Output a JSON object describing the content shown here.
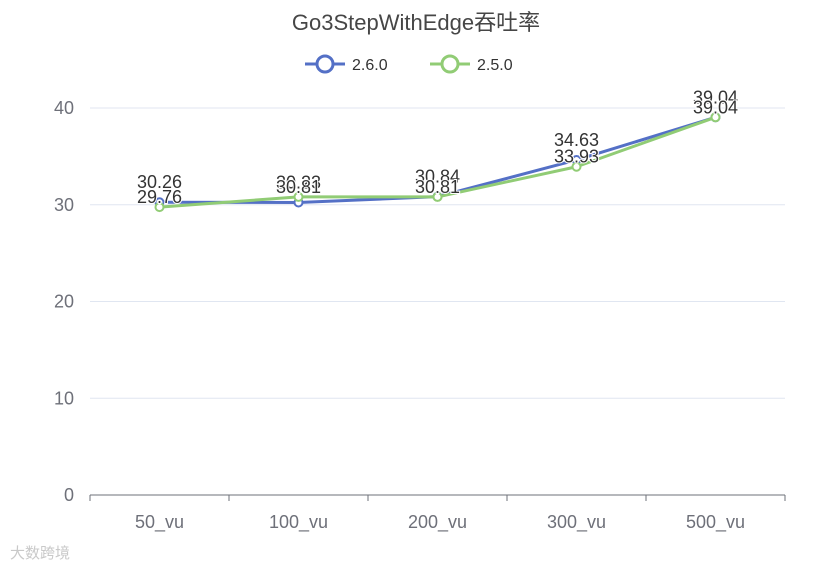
{
  "chart_data": {
    "type": "line",
    "title": "Go3StepWithEdge吞吐率",
    "categories": [
      "50_vu",
      "100_vu",
      "200_vu",
      "300_vu",
      "500_vu"
    ],
    "ylim": [
      0,
      40
    ],
    "yticks": [
      0,
      10,
      20,
      30,
      40
    ],
    "grid": true,
    "legend_position": "top-center",
    "series": [
      {
        "name": "2.6.0",
        "color": "#5470c6",
        "values": [
          30.26,
          30.23,
          30.84,
          34.63,
          39.04
        ]
      },
      {
        "name": "2.5.0",
        "color": "#91cc75",
        "values": [
          29.76,
          30.81,
          30.81,
          33.93,
          39.04
        ]
      }
    ]
  },
  "watermark": "大数跨境"
}
